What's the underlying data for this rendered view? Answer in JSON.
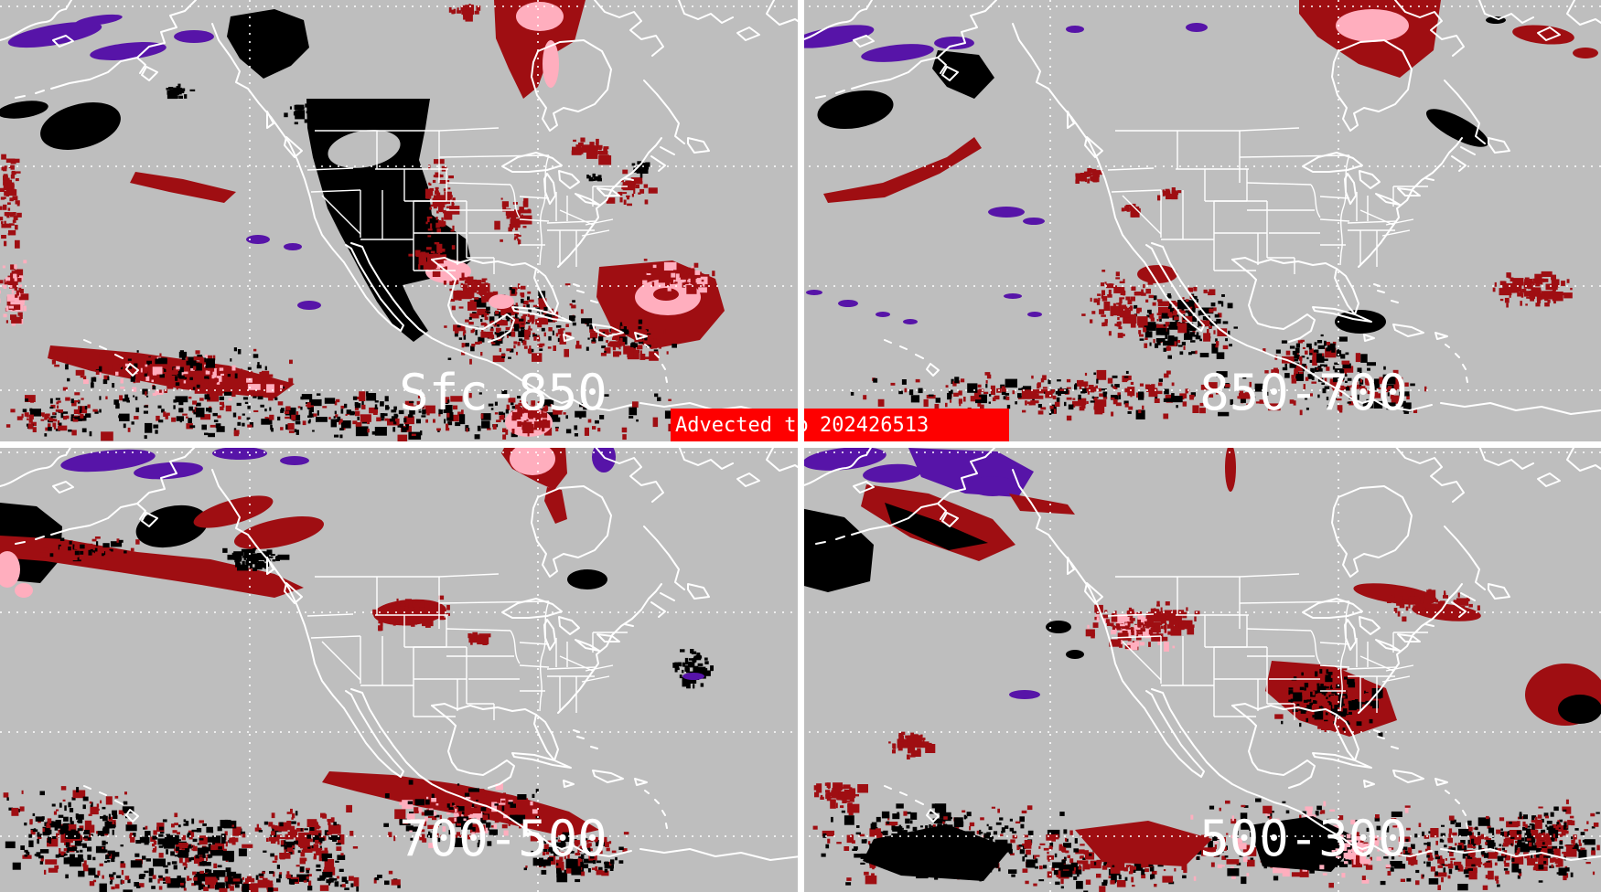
{
  "product": {
    "banner": {
      "label": "Advected to",
      "value": "202426513"
    }
  },
  "panels": [
    {
      "id": "sfc-850",
      "label": "Sfc-850",
      "position": "top-left"
    },
    {
      "id": "850-700",
      "label": "850-700",
      "position": "top-right"
    },
    {
      "id": "700-500",
      "label": "700-500",
      "position": "bottom-left"
    },
    {
      "id": "500-300",
      "label": "500-300",
      "position": "bottom-right"
    }
  ],
  "palette": {
    "background": "#bebebe",
    "map_lines": "#ffffff",
    "graticule": "#ffffff",
    "divider": "#ffffff",
    "black_region": "#000000",
    "dark_red_region": "#9f0e12",
    "pink_region": "#ffaebe",
    "purple_region": "#5714a8",
    "banner_red": "#fe0000",
    "banner_text": "#ffffff",
    "label_text": "#ffffff"
  }
}
